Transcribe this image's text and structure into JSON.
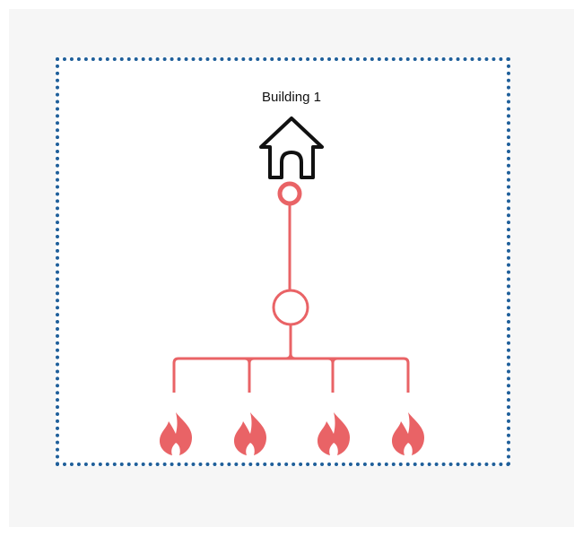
{
  "diagram": {
    "title": "Building 1",
    "colors": {
      "background": "#f6f6f6",
      "frame_border": "#1f5f9a",
      "network": "#e96366",
      "house": "#111111"
    },
    "nodes": {
      "building": {
        "icon": "house-icon"
      },
      "connection": {
        "icon": "ring-node-icon"
      },
      "hub": {
        "icon": "circle-node-icon"
      },
      "sources": [
        {
          "icon": "flame-icon"
        },
        {
          "icon": "flame-icon"
        },
        {
          "icon": "flame-icon"
        },
        {
          "icon": "flame-icon"
        }
      ]
    }
  }
}
